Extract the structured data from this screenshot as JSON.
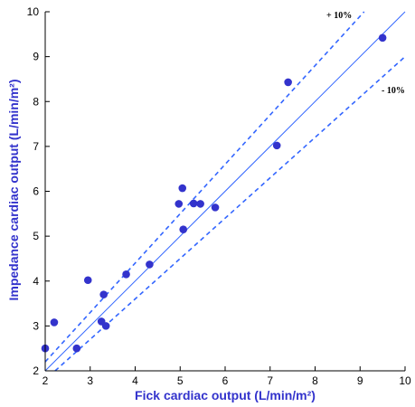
{
  "chart_data": {
    "type": "scatter",
    "title": "",
    "xlabel": "Fick cardiac output (L/min/m²)",
    "ylabel": "Impedance cardiac output (L/min/m²)",
    "xlim": [
      2,
      10
    ],
    "ylim": [
      2,
      10
    ],
    "xticks": [
      2,
      3,
      4,
      5,
      6,
      7,
      8,
      9,
      10
    ],
    "yticks": [
      2,
      3,
      4,
      5,
      6,
      7,
      8,
      9,
      10
    ],
    "grid": false,
    "colors": {
      "points": "#3333cc",
      "lines": "#3366ff",
      "axis_title": "#3333cc"
    },
    "points": [
      {
        "x": 2.0,
        "y": 2.5
      },
      {
        "x": 2.2,
        "y": 3.08
      },
      {
        "x": 2.7,
        "y": 2.5
      },
      {
        "x": 2.95,
        "y": 4.02
      },
      {
        "x": 3.25,
        "y": 3.1
      },
      {
        "x": 3.3,
        "y": 3.7
      },
      {
        "x": 3.35,
        "y": 3.0
      },
      {
        "x": 3.8,
        "y": 4.15
      },
      {
        "x": 4.32,
        "y": 4.37
      },
      {
        "x": 4.97,
        "y": 5.72
      },
      {
        "x": 5.05,
        "y": 6.07
      },
      {
        "x": 5.07,
        "y": 5.15
      },
      {
        "x": 5.3,
        "y": 5.73
      },
      {
        "x": 5.45,
        "y": 5.72
      },
      {
        "x": 5.78,
        "y": 5.64
      },
      {
        "x": 7.15,
        "y": 7.02
      },
      {
        "x": 7.4,
        "y": 8.43
      },
      {
        "x": 9.5,
        "y": 9.42
      }
    ],
    "reference_lines": [
      {
        "style": "solid",
        "from": [
          2,
          2
        ],
        "to": [
          10,
          10
        ]
      },
      {
        "style": "dashed",
        "label": "+ 10%",
        "from": [
          2,
          2.2
        ],
        "to": [
          9.09,
          10
        ]
      },
      {
        "style": "dashed",
        "label": "- 10%",
        "from": [
          2.22,
          2
        ],
        "to": [
          10,
          9
        ]
      }
    ]
  }
}
